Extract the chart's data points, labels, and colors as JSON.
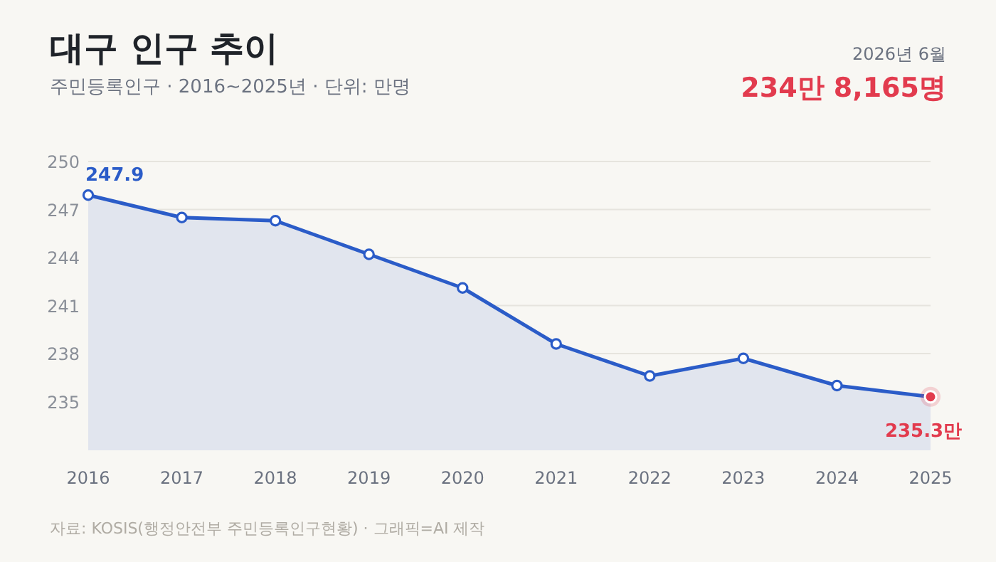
{
  "chart_data": {
    "type": "area",
    "title": "대구 인구 추이",
    "subtitle": "주민등록인구 · 2016~2025년 · 단위: 만명",
    "annotations": [
      "2026년 6월",
      "234만 8,165명",
      "자료: KOSIS(행정안전부 주민등록인구현황) · 그래픽=AI 제작"
    ],
    "categories": [
      "2016",
      "2017",
      "2018",
      "2019",
      "2020",
      "2021",
      "2022",
      "2023",
      "2024",
      "2025"
    ],
    "series": [
      {
        "color": "#2b5cc8",
        "colors": [
          "#2b5cc8",
          "#2b5cc8",
          "#2b5cc8",
          "#2b5cc8",
          "#2b5cc8",
          "#2b5cc8",
          "#2b5cc8",
          "#2b5cc8",
          "#2b5cc8",
          "#e23b4e"
        ],
        "values": [
          247.9,
          246.5,
          246.3,
          244.2,
          242.1,
          238.6,
          236.6,
          237.7,
          236.0,
          235.3
        ],
        "value_labels": [
          "247.9",
          null,
          null,
          null,
          null,
          null,
          null,
          null,
          null,
          "235.3만"
        ]
      }
    ],
    "ylim": [
      232,
      250
    ],
    "yticks": [
      {
        "value": 250,
        "label": "250"
      },
      247,
      244,
      241,
      238,
      235
    ],
    "grid": "y",
    "marker": "circle",
    "line_style": "solid"
  }
}
